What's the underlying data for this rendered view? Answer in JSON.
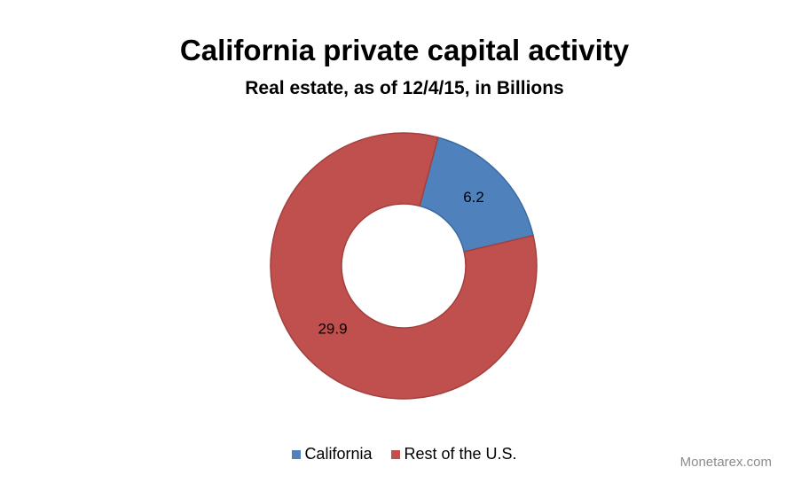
{
  "chart_data": {
    "type": "pie",
    "title": "California private capital activity",
    "subtitle": "Real estate, as of 12/4/15, in Billions",
    "donut": true,
    "categories": [
      "California",
      "Rest of the U.S."
    ],
    "values": [
      6.2,
      29.9
    ],
    "data_labels": [
      "6.2",
      "29.9"
    ],
    "colors": [
      "#4f81bd",
      "#c0504d"
    ],
    "legend_position": "bottom"
  },
  "watermark": "Monetarex.com"
}
